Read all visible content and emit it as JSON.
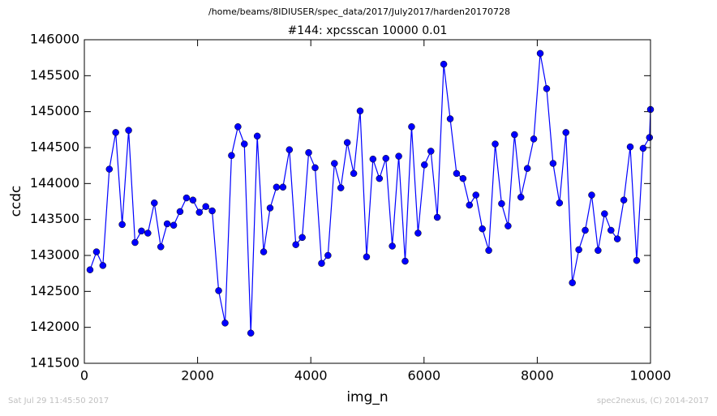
{
  "chart_data": {
    "type": "line",
    "suptitle": "/home/beams/8IDIUSER/spec_data/2017/July2017/harden20170728",
    "title": "#144: xpcsscan 10000 0.01",
    "xlabel": "img_n",
    "ylabel": "ccdc",
    "footer_left": "Sat Jul 29 11:45:50 2017",
    "footer_right": "spec2nexus, (C) 2014-2017",
    "x": [
      100,
      214,
      327,
      441,
      554,
      668,
      782,
      895,
      1009,
      1122,
      1236,
      1350,
      1463,
      1577,
      1690,
      1804,
      1918,
      2031,
      2145,
      2258,
      2372,
      2486,
      2599,
      2713,
      2826,
      2940,
      3054,
      3167,
      3281,
      3394,
      3508,
      3622,
      3735,
      3849,
      3962,
      4076,
      4190,
      4303,
      4417,
      4530,
      4644,
      4758,
      4871,
      4985,
      5098,
      5212,
      5326,
      5439,
      5553,
      5666,
      5780,
      5894,
      6007,
      6121,
      6234,
      6348,
      6462,
      6575,
      6689,
      6802,
      6916,
      7030,
      7143,
      7257,
      7370,
      7484,
      7598,
      7711,
      7825,
      7938,
      8052,
      8166,
      8279,
      8393,
      8506,
      8620,
      8734,
      8847,
      8961,
      9074,
      9188,
      9302,
      9415,
      9529,
      9642,
      9756,
      9870,
      9983,
      10000
    ],
    "series": [
      {
        "name": "ccdc",
        "color": "#0000ff",
        "values": [
          142800,
          143050,
          142860,
          144200,
          144710,
          143430,
          144740,
          143180,
          143340,
          143310,
          143730,
          143120,
          143440,
          143420,
          143610,
          143800,
          143770,
          143600,
          143680,
          143620,
          142510,
          142060,
          144390,
          144790,
          144550,
          141920,
          144660,
          143050,
          143660,
          143950,
          143950,
          144470,
          143150,
          143250,
          144430,
          144220,
          142890,
          143000,
          144280,
          143940,
          144570,
          144140,
          145010,
          142980,
          144340,
          144070,
          144350,
          143130,
          144380,
          142920,
          144790,
          143310,
          144260,
          144450,
          143530,
          145660,
          144900,
          144140,
          144070,
          143700,
          143840,
          143370,
          143070,
          144550,
          143720,
          143410,
          144680,
          143810,
          144210,
          144620,
          145810,
          145320,
          144280,
          143730,
          144710,
          142620,
          143080,
          143350,
          143840,
          143070,
          143580,
          143350,
          143230,
          143770,
          144510,
          142930,
          144490,
          144640,
          145030
        ]
      }
    ],
    "xlim": [
      0,
      10000
    ],
    "xticks": [
      0,
      2000,
      4000,
      6000,
      8000,
      10000
    ],
    "ylim": [
      141500,
      146000
    ],
    "yticks": [
      141500,
      142000,
      142500,
      143000,
      143500,
      144000,
      144500,
      145000,
      145500,
      146000
    ],
    "grid": false
  }
}
